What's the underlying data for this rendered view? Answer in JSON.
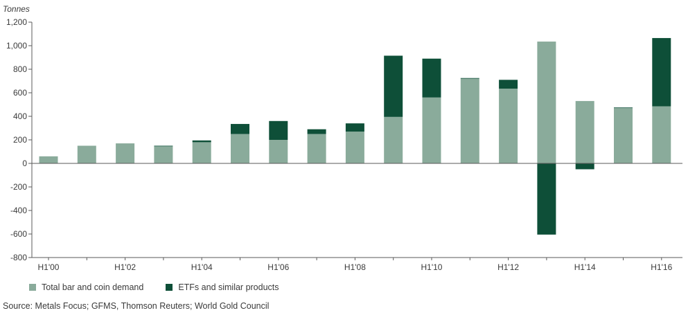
{
  "chart_data": {
    "type": "bar",
    "stacked": true,
    "ylabel": "Tonnes",
    "ylim": [
      -800,
      1200
    ],
    "yticks": [
      -800,
      -600,
      -400,
      -200,
      0,
      200,
      400,
      600,
      800,
      1000,
      1200
    ],
    "ytick_labels": [
      "-800",
      "-600",
      "-400",
      "-200",
      "0",
      "200",
      "400",
      "600",
      "800",
      "1,000",
      "1,200"
    ],
    "categories": [
      "H1'00",
      "H1'01",
      "H1'02",
      "H1'03",
      "H1'04",
      "H1'05",
      "H1'06",
      "H1'07",
      "H1'08",
      "H1'09",
      "H1'10",
      "H1'11",
      "H1'12",
      "H1'13",
      "H1'14",
      "H1'15",
      "H1'16"
    ],
    "xtick_labels": [
      "H1'00",
      "",
      "H1'02",
      "",
      "H1'04",
      "",
      "H1'06",
      "",
      "H1'08",
      "",
      "H1'10",
      "",
      "H1'12",
      "",
      "H1'14",
      "",
      "H1'16"
    ],
    "series": [
      {
        "name": "Total bar and coin demand",
        "color": "#8aab9b",
        "values": [
          60,
          150,
          170,
          145,
          180,
          250,
          200,
          250,
          270,
          395,
          560,
          720,
          635,
          1035,
          530,
          470,
          485
        ]
      },
      {
        "name": "ETFs and similar products",
        "color": "#0e4f38",
        "values": [
          0,
          0,
          0,
          5,
          15,
          85,
          160,
          40,
          70,
          520,
          330,
          5,
          75,
          -605,
          -50,
          5,
          580
        ]
      }
    ],
    "legend_position": "bottom-left",
    "grid": false
  },
  "source": "Source: Metals Focus; GFMS, Thomson Reuters; World Gold Council"
}
